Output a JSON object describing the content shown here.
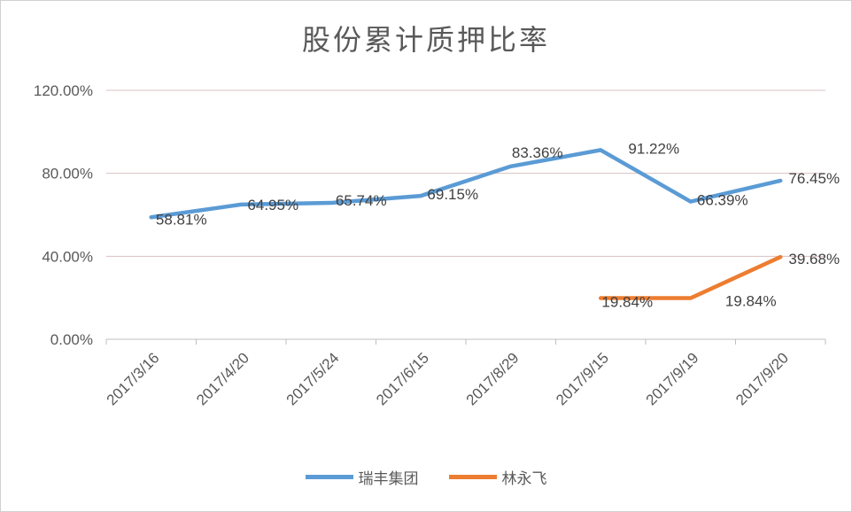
{
  "chart_data": {
    "type": "line",
    "title": "股份累计质押比率",
    "categories": [
      "2017/3/16",
      "2017/4/20",
      "2017/5/24",
      "2017/6/15",
      "2017/8/29",
      "2017/9/15",
      "2017/9/19",
      "2017/9/20"
    ],
    "ylim": [
      0,
      120
    ],
    "yticks": [
      "0.00%",
      "40.00%",
      "80.00%",
      "120.00%"
    ],
    "ytick_values": [
      0,
      40,
      80,
      120
    ],
    "grid": true,
    "legend_position": "bottom",
    "series": [
      {
        "name": "瑞丰集团",
        "color": "#5b9bd5",
        "values": [
          58.81,
          64.95,
          65.74,
          69.15,
          83.36,
          91.22,
          66.39,
          76.45
        ],
        "labels": [
          "58.81%",
          "64.95%",
          "65.74%",
          "69.15%",
          "83.36%",
          "91.22%",
          "66.39%",
          "76.45%"
        ]
      },
      {
        "name": "林永飞",
        "color": "#ed7d31",
        "values": [
          null,
          null,
          null,
          null,
          null,
          19.84,
          19.84,
          39.68
        ],
        "labels": [
          null,
          null,
          null,
          null,
          null,
          "19.84%",
          "19.84%",
          "39.68%"
        ]
      }
    ]
  }
}
